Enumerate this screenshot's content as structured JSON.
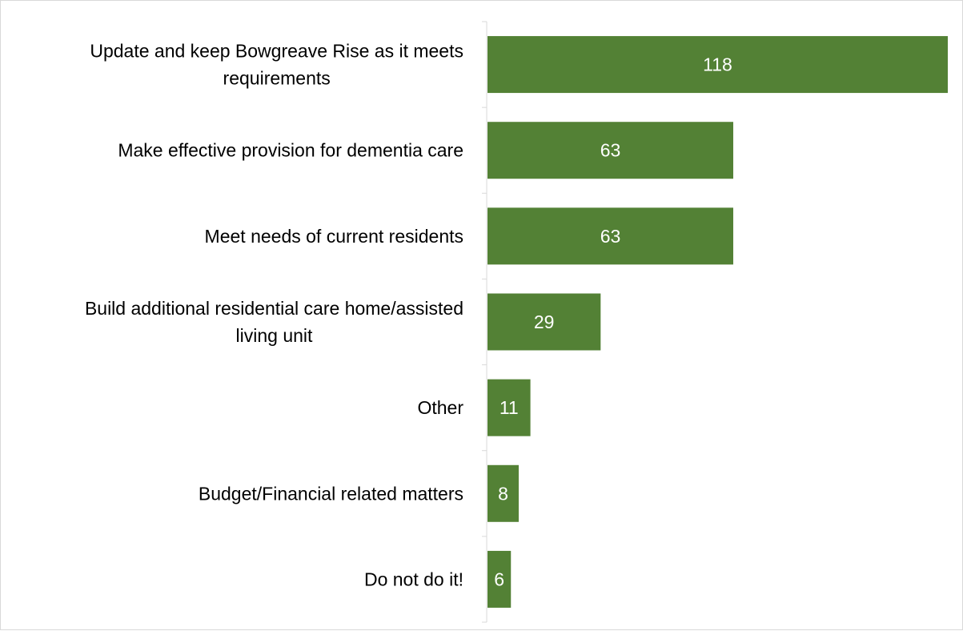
{
  "chart_data": {
    "type": "bar",
    "orientation": "horizontal",
    "categories": [
      "Update and keep Bowgreave Rise as it meets requirements",
      "Make effective provision for dementia care",
      "Meet needs of current residents",
      "Build additional residential care home/assisted living unit",
      "Other",
      "Budget/Financial related matters",
      "Do not do it!"
    ],
    "category_lines": [
      [
        "Update and keep Bowgreave Rise as it meets",
        "requirements"
      ],
      [
        "Make effective provision for dementia care"
      ],
      [
        "Meet needs of current residents"
      ],
      [
        "Build additional residential care home/assisted",
        "living unit"
      ],
      [
        "Other"
      ],
      [
        "Budget/Financial related matters"
      ],
      [
        "Do not do it!"
      ]
    ],
    "values": [
      118,
      63,
      63,
      29,
      11,
      8,
      6
    ],
    "data_labels": [
      "118",
      "63",
      "63",
      "29",
      "11",
      "8",
      "6"
    ],
    "xlim": [
      0,
      118
    ],
    "bar_color": "#538135",
    "label_color": "#ffffff",
    "axis_color": "#d9d9d9",
    "grid": false,
    "legend": "none",
    "title": "",
    "xlabel": "",
    "ylabel": ""
  }
}
